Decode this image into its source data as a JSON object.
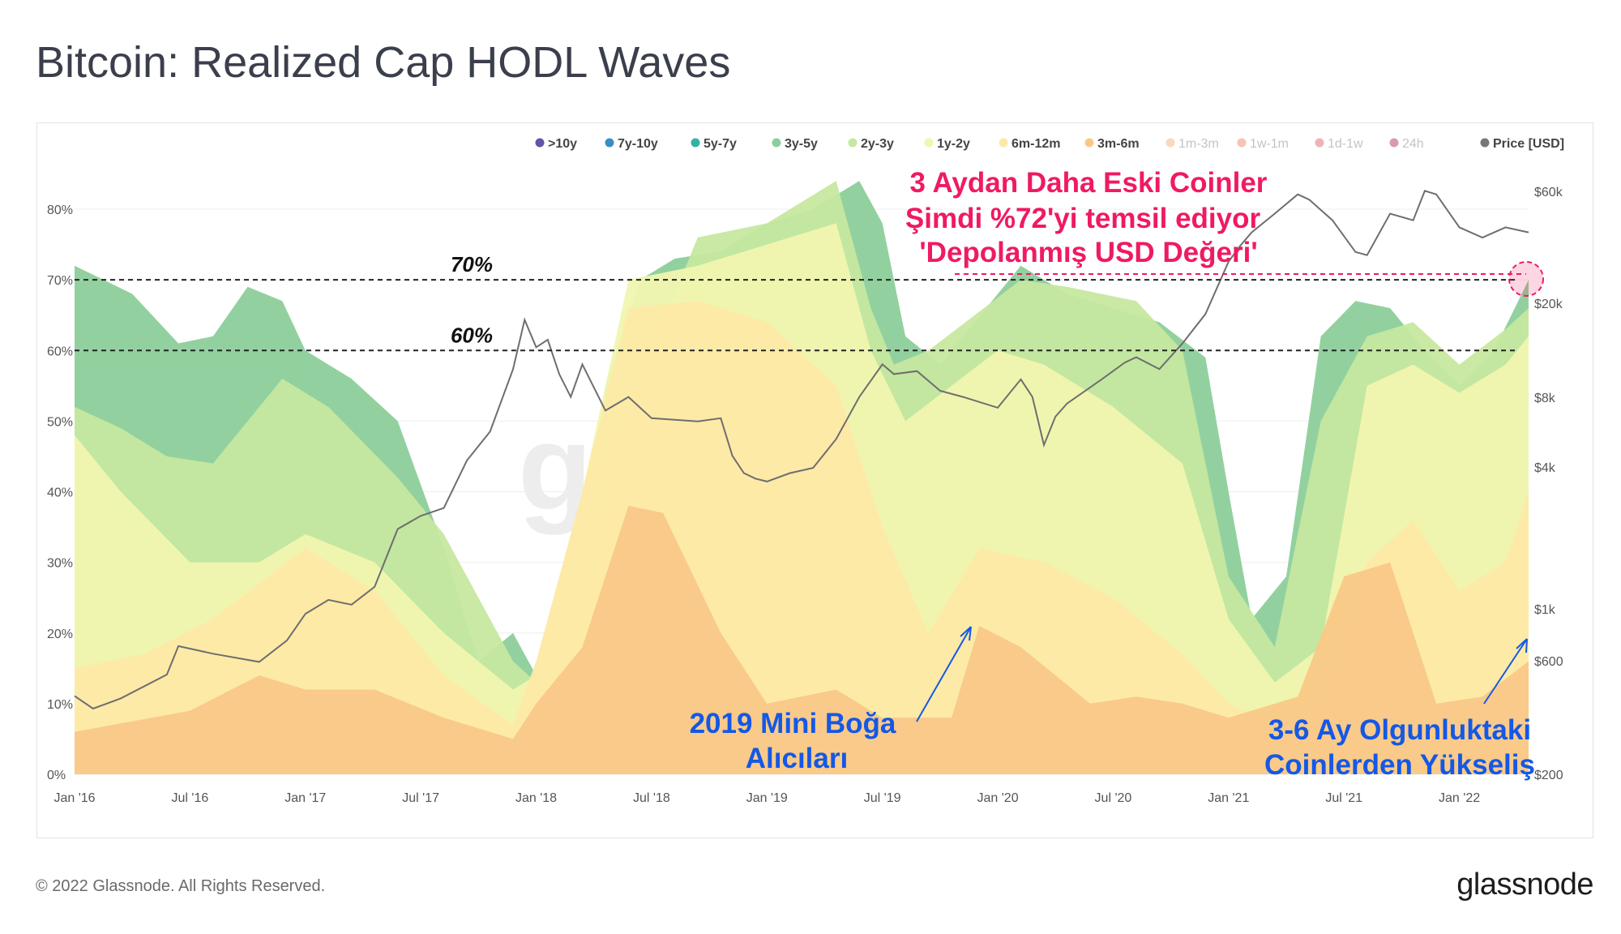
{
  "title": "Bitcoin: Realized Cap HODL Waves",
  "footer": "© 2022 Glassnode. All Rights Reserved.",
  "brand": "glassnode",
  "watermark": "glassnode",
  "chart_data": {
    "type": "area",
    "title": "Bitcoin: Realized Cap HODL Waves",
    "x_ticks": [
      "Jan '16",
      "Jul '16",
      "Jan '17",
      "Jul '17",
      "Jan '18",
      "Jul '18",
      "Jan '19",
      "Jul '19",
      "Jan '20",
      "Jul '20",
      "Jan '21",
      "Jul '21",
      "Jan '22"
    ],
    "y_left_ticks": [
      "0%",
      "10%",
      "20%",
      "30%",
      "40%",
      "50%",
      "60%",
      "70%",
      "80%"
    ],
    "y_left_range": [
      0,
      80
    ],
    "y_right_ticks": [
      "$200",
      "$600",
      "$1k",
      "$4k",
      "$8k",
      "$20k",
      "$60k"
    ],
    "y_right_values": [
      200,
      600,
      1000,
      4000,
      8000,
      20000,
      60000
    ],
    "legend": [
      {
        "label": ">10y",
        "color": "#5e56a6",
        "dim": false
      },
      {
        "label": "7y-10y",
        "color": "#3a8dc4",
        "dim": false
      },
      {
        "label": "5y-7y",
        "color": "#36b1a6",
        "dim": false
      },
      {
        "label": "3y-5y",
        "color": "#8ccf9a",
        "dim": false
      },
      {
        "label": "2y-3y",
        "color": "#c6e8a0",
        "dim": false
      },
      {
        "label": "1y-2y",
        "color": "#f1f5b0",
        "dim": false
      },
      {
        "label": "6m-12m",
        "color": "#fde9a6",
        "dim": false
      },
      {
        "label": "3m-6m",
        "color": "#f9c887",
        "dim": false
      },
      {
        "label": "1m-3m",
        "color": "#f59a5a",
        "dim": true
      },
      {
        "label": "1w-1m",
        "color": "#ea6a45",
        "dim": true
      },
      {
        "label": "1d-1w",
        "color": "#d53e4f",
        "dim": true
      },
      {
        "label": "24h",
        "color": "#9e0142",
        "dim": true
      },
      {
        "label": "Price [USD]",
        "color": "#777777",
        "dim": false
      }
    ],
    "series": [
      {
        "name": "3m-6m",
        "color": "#f9c887",
        "x": [
          2016.0,
          2016.5,
          2016.8,
          2017.0,
          2017.3,
          2017.6,
          2017.9,
          2018.0,
          2018.2,
          2018.4,
          2018.55,
          2018.8,
          2019.0,
          2019.3,
          2019.5,
          2019.8,
          2019.92,
          2020.1,
          2020.4,
          2020.6,
          2020.8,
          2021.0,
          2021.3,
          2021.5,
          2021.7,
          2021.9,
          2022.1,
          2022.3
        ],
        "values": [
          6,
          9,
          14,
          12,
          12,
          8,
          5,
          10,
          18,
          38,
          37,
          20,
          10,
          12,
          8,
          8,
          21,
          18,
          10,
          11,
          10,
          8,
          11,
          28,
          30,
          10,
          11,
          16
        ]
      },
      {
        "name": "6m-12m",
        "color": "#fde9a6",
        "x": [
          2016.0,
          2016.3,
          2016.6,
          2017.0,
          2017.3,
          2017.6,
          2017.9,
          2018.0,
          2018.2,
          2018.4,
          2018.7,
          2019.0,
          2019.3,
          2019.5,
          2019.7,
          2019.92,
          2020.2,
          2020.5,
          2020.8,
          2021.0,
          2021.2,
          2021.4,
          2021.6,
          2021.8,
          2022.0,
          2022.2,
          2022.3
        ],
        "values": [
          15,
          17,
          22,
          32,
          26,
          14,
          7,
          16,
          40,
          66,
          67,
          64,
          55,
          35,
          20,
          32,
          30,
          25,
          17,
          10,
          7,
          10,
          30,
          36,
          26,
          30,
          40
        ]
      },
      {
        "name": "1y-2y",
        "color": "#f1f5b0",
        "x": [
          2016.0,
          2016.2,
          2016.5,
          2016.8,
          2017.0,
          2017.3,
          2017.6,
          2017.9,
          2018.0,
          2018.2,
          2018.4,
          2018.7,
          2019.0,
          2019.3,
          2019.45,
          2019.6,
          2019.8,
          2020.0,
          2020.2,
          2020.5,
          2020.8,
          2021.0,
          2021.2,
          2021.4,
          2021.6,
          2021.8,
          2022.0,
          2022.2,
          2022.3
        ],
        "values": [
          48,
          40,
          30,
          30,
          34,
          30,
          20,
          12,
          14,
          40,
          70,
          72,
          75,
          78,
          60,
          50,
          55,
          60,
          58,
          52,
          44,
          22,
          13,
          18,
          55,
          58,
          54,
          58,
          62
        ]
      },
      {
        "name": "2y-3y",
        "color": "#c6e8a0",
        "x": [
          2016.0,
          2016.2,
          2016.4,
          2016.6,
          2016.9,
          2017.1,
          2017.4,
          2017.6,
          2017.9,
          2018.0,
          2018.15,
          2018.4,
          2018.7,
          2019.0,
          2019.3,
          2019.45,
          2019.55,
          2019.7,
          2019.9,
          2020.1,
          2020.3,
          2020.6,
          2020.8,
          2021.0,
          2021.2,
          2021.4,
          2021.6,
          2021.8,
          2022.0,
          2022.2,
          2022.3
        ],
        "values": [
          52,
          49,
          45,
          44,
          56,
          52,
          42,
          34,
          16,
          13,
          14,
          52,
          76,
          78,
          84,
          66,
          58,
          60,
          65,
          70,
          69,
          67,
          60,
          28,
          18,
          50,
          62,
          64,
          58,
          63,
          66
        ]
      },
      {
        "name": "3y-5y",
        "color": "#8ccf9a",
        "x": [
          2016.0,
          2016.25,
          2016.45,
          2016.6,
          2016.75,
          2016.9,
          2017.0,
          2017.2,
          2017.4,
          2017.6,
          2017.75,
          2017.9,
          2018.0,
          2018.05,
          2018.15,
          2018.3,
          2018.45,
          2018.6,
          2018.8,
          2019.0,
          2019.2,
          2019.4,
          2019.5,
          2019.6,
          2019.75,
          2019.9,
          2020.1,
          2020.3,
          2020.5,
          2020.7,
          2020.9,
          2021.0,
          2021.1,
          2021.25,
          2021.4,
          2021.55,
          2021.7,
          2021.85,
          2022.0,
          2022.15,
          2022.3
        ],
        "values": [
          72,
          68,
          61,
          62,
          69,
          67,
          60,
          56,
          50,
          32,
          16,
          20,
          14,
          13,
          16,
          55,
          70,
          73,
          74,
          78,
          80,
          84,
          78,
          62,
          58,
          64,
          72,
          68,
          66,
          64,
          59,
          40,
          22,
          28,
          62,
          67,
          66,
          60,
          55,
          60,
          70
        ]
      }
    ],
    "price": {
      "name": "Price [USD]",
      "color": "#6e6e6e",
      "x": [
        2016.0,
        2016.08,
        2016.2,
        2016.4,
        2016.45,
        2016.6,
        2016.8,
        2016.92,
        2017.0,
        2017.1,
        2017.2,
        2017.3,
        2017.4,
        2017.5,
        2017.6,
        2017.7,
        2017.8,
        2017.9,
        2017.95,
        2018.0,
        2018.05,
        2018.1,
        2018.15,
        2018.2,
        2018.3,
        2018.4,
        2018.5,
        2018.6,
        2018.7,
        2018.8,
        2018.85,
        2018.9,
        2018.95,
        2019.0,
        2019.1,
        2019.2,
        2019.3,
        2019.4,
        2019.5,
        2019.55,
        2019.65,
        2019.75,
        2019.85,
        2020.0,
        2020.1,
        2020.15,
        2020.2,
        2020.25,
        2020.3,
        2020.45,
        2020.55,
        2020.6,
        2020.7,
        2020.8,
        2020.9,
        2021.0,
        2021.05,
        2021.1,
        2021.2,
        2021.3,
        2021.35,
        2021.45,
        2021.55,
        2021.6,
        2021.7,
        2021.8,
        2021.85,
        2021.9,
        2022.0,
        2022.1,
        2022.2,
        2022.3
      ],
      "values": [
        430,
        380,
        420,
        530,
        700,
        650,
        600,
        740,
        960,
        1100,
        1050,
        1250,
        2200,
        2500,
        2700,
        4300,
        5700,
        10500,
        17000,
        13000,
        14000,
        10000,
        8000,
        11000,
        7000,
        8000,
        6500,
        6400,
        6300,
        6500,
        4500,
        3800,
        3600,
        3500,
        3800,
        4000,
        5300,
        8000,
        11000,
        10000,
        10300,
        8500,
        8000,
        7200,
        9500,
        8000,
        5000,
        6600,
        7500,
        9500,
        11200,
        11800,
        10500,
        13500,
        18000,
        30000,
        35000,
        40000,
        48000,
        58000,
        55000,
        45000,
        33000,
        32000,
        48000,
        45000,
        60000,
        58000,
        42000,
        38000,
        42000,
        40000
      ]
    },
    "reference_lines": [
      {
        "label": "70%",
        "value": 70
      },
      {
        "label": "60%",
        "value": 60
      }
    ],
    "annotations": {
      "top_line1": "3 Aydan Daha Eski Coinler",
      "top_line2": "Şimdi %72'yi temsil ediyor",
      "top_line3": "'Depolanmış USD Değeri'",
      "mid_line1": "2019 Mini Boğa",
      "mid_line2": "Alıcıları",
      "right_line1": "3-6 Ay Olgunluktaki",
      "right_line2": "Coinlerden Yükseliş",
      "marker_value_pct": 72
    },
    "x_range": [
      2016.0,
      2022.3
    ]
  }
}
